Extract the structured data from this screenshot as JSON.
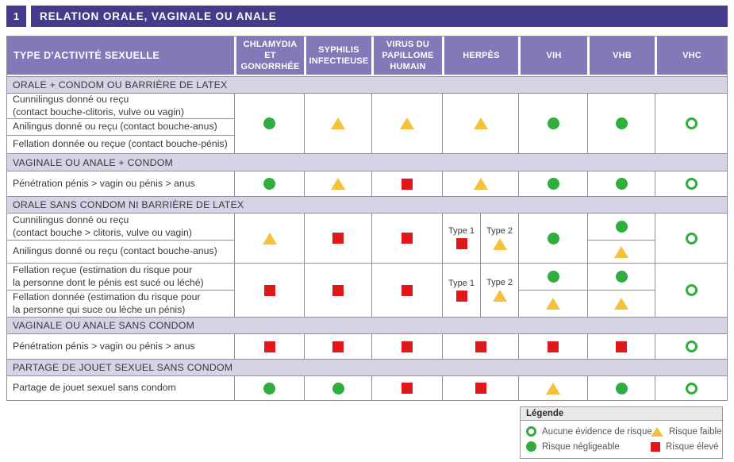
{
  "title": {
    "number": "1",
    "text": "RELATION ORALE, VAGINALE OU ANALE"
  },
  "colors": {
    "accent_purple": "#443b8d",
    "header_purple": "#8279b8",
    "band_purple": "#d6d3e6",
    "risk_green": "#2fae3e",
    "risk_yellow": "#f5c13a",
    "risk_red": "#e2171c"
  },
  "table": {
    "corner_header": "TYPE D'ACTIVITÉ SEXUELLE",
    "columns": [
      {
        "key": "chlamydia",
        "label": "CHLAMYDIA\nET\nGONORRHÉE"
      },
      {
        "key": "syphilis",
        "label": "SYPHILIS\nINFECTIEUSE"
      },
      {
        "key": "vph",
        "label": "VIRUS DU\nPAPILLOME\nHUMAIN"
      },
      {
        "key": "herpes",
        "label": "HERPÈS"
      },
      {
        "key": "vih",
        "label": "VIH"
      },
      {
        "key": "vhb",
        "label": "VHB"
      },
      {
        "key": "vhc",
        "label": "VHC"
      }
    ],
    "herpes_subtypes": {
      "type1": "Type 1",
      "type2": "Type 2"
    }
  },
  "sections": [
    {
      "band": "ORALE + CONDOM OU BARRIÈRE DE LATEX",
      "rows": [
        {
          "label": "Cunnilingus donné ou reçu\n(contact bouche-clitoris, vulve ou vagin)"
        },
        {
          "label": "Anilingus donné ou reçu (contact bouche-anus)"
        },
        {
          "label": "Fellation donnée ou reçue (contact bouche-pénis)"
        }
      ],
      "risks": {
        "chlamydia": "negligible",
        "syphilis": "low",
        "vph": "low",
        "herpes": "low",
        "vih": "negligible",
        "vhb": "negligible",
        "vhc": "none"
      }
    },
    {
      "band": "VAGINALE OU ANALE + CONDOM",
      "rows": [
        {
          "label": "Pénétration pénis > vagin ou pénis > anus"
        }
      ],
      "risks": {
        "chlamydia": "negligible",
        "syphilis": "low",
        "vph": "high",
        "herpes": "low",
        "vih": "negligible",
        "vhb": "negligible",
        "vhc": "none"
      }
    },
    {
      "band": "ORALE SANS CONDOM NI BARRIÈRE DE LATEX",
      "groups": [
        {
          "rows": [
            {
              "label": "Cunnilingus donné ou reçu\n(contact bouche > clitoris, vulve ou vagin)"
            },
            {
              "label": "Anilingus donné ou reçu (contact bouche-anus)"
            }
          ],
          "risks": {
            "chlamydia": "low",
            "syphilis": "high",
            "vph": "high",
            "herpes_type1": "high",
            "herpes_type2": "low",
            "vih": "negligible",
            "vhb_row1": "negligible",
            "vhb_row2": "low",
            "vhc": "none"
          }
        },
        {
          "rows": [
            {
              "label": "Fellation reçue (estimation du risque pour\nla personne dont le pénis est sucé ou léché)"
            },
            {
              "label": "Fellation donnée (estimation du risque pour\nla personne qui suce ou lèche un pénis)"
            }
          ],
          "risks": {
            "chlamydia": "high",
            "syphilis": "high",
            "vph": "high",
            "herpes_type1": "high",
            "herpes_type2": "low",
            "vih_row1": "negligible",
            "vih_row2": "low",
            "vhb_row1": "negligible",
            "vhb_row2": "low",
            "vhc": "none"
          }
        }
      ]
    },
    {
      "band": "VAGINALE OU ANALE SANS CONDOM",
      "rows": [
        {
          "label": "Pénétration pénis > vagin ou pénis > anus"
        }
      ],
      "risks": {
        "chlamydia": "high",
        "syphilis": "high",
        "vph": "high",
        "herpes": "high",
        "vih": "high",
        "vhb": "high",
        "vhc": "none"
      }
    },
    {
      "band": "PARTAGE DE JOUET SEXUEL SANS CONDOM",
      "rows": [
        {
          "label": "Partage de jouet sexuel sans condom"
        }
      ],
      "risks": {
        "chlamydia": "negligible",
        "syphilis": "negligible",
        "vph": "high",
        "herpes": "high",
        "vih": "low",
        "vhb": "negligible",
        "vhc": "none"
      }
    }
  ],
  "legend": {
    "title": "Légende",
    "items": [
      {
        "symbol": "none",
        "label": "Aucune évidence de risque"
      },
      {
        "symbol": "low",
        "label": "Risque faible"
      },
      {
        "symbol": "negligible",
        "label": "Risque négligeable"
      },
      {
        "symbol": "high",
        "label": "Risque élevé"
      }
    ]
  }
}
